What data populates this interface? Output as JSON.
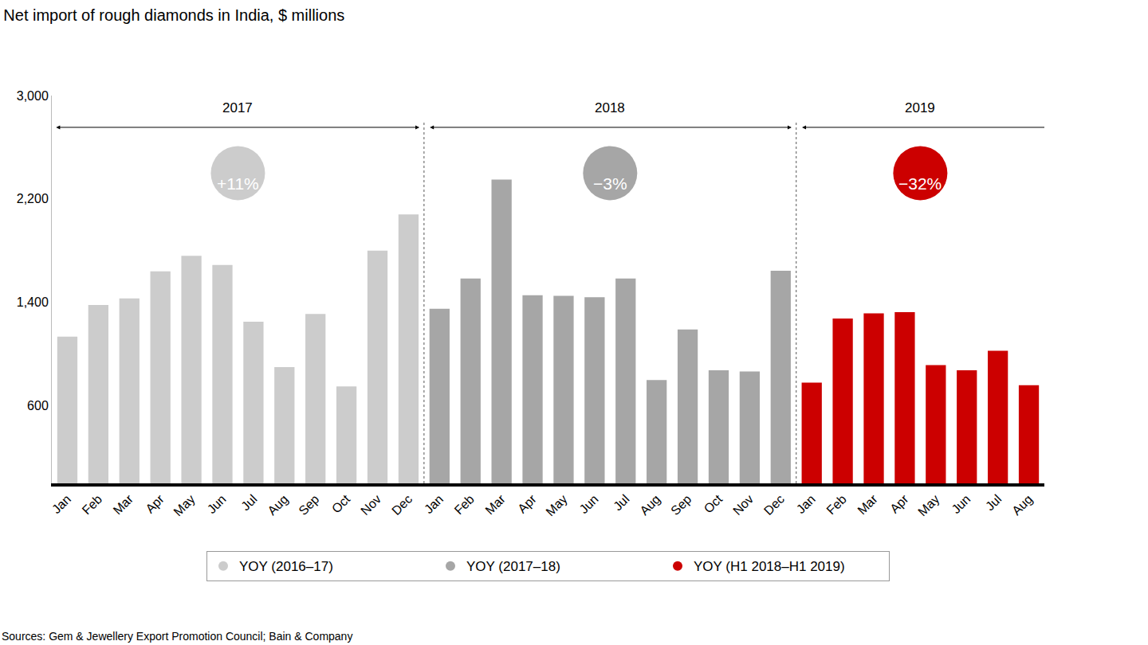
{
  "chart_data": {
    "type": "bar",
    "title": "Net import of rough diamonds in India, $ millions",
    "source": "Sources: Gem & Jewellery Export Promotion Council; Bain & Company",
    "categories": [
      "Jan",
      "Feb",
      "Mar",
      "Apr",
      "May",
      "Jun",
      "Jul",
      "Aug",
      "Sep",
      "Oct",
      "Nov",
      "Dec",
      "Jan",
      "Feb",
      "Mar",
      "Apr",
      "May",
      "Jun",
      "Jul",
      "Aug",
      "Sep",
      "Oct",
      "Nov",
      "Dec",
      "Jan",
      "Feb",
      "Mar",
      "Apr",
      "May",
      "Jun",
      "Jul",
      "Aug"
    ],
    "series": [
      {
        "name": "YOY (2016–17)",
        "color": "#cccccc",
        "marker": "circle",
        "values": [
          1135,
          1380,
          1430,
          1640,
          1760,
          1690,
          1250,
          900,
          1310,
          750,
          1800,
          2080,
          null,
          null,
          null,
          null,
          null,
          null,
          null,
          null,
          null,
          null,
          null,
          null,
          null,
          null,
          null,
          null,
          null,
          null,
          null,
          null
        ]
      },
      {
        "name": "YOY (2017–18)",
        "color": "#a6a6a6",
        "marker": "circle",
        "values": [
          null,
          null,
          null,
          null,
          null,
          null,
          null,
          null,
          null,
          null,
          null,
          null,
          1350,
          1585,
          2350,
          1455,
          1450,
          1440,
          1585,
          800,
          1190,
          875,
          865,
          1645,
          null,
          null,
          null,
          null,
          null,
          null,
          null,
          null
        ]
      },
      {
        "name": "YOY (H1 2018–H1 2019)",
        "color": "#cc0000",
        "marker": "circle",
        "values": [
          null,
          null,
          null,
          null,
          null,
          null,
          null,
          null,
          null,
          null,
          null,
          null,
          null,
          null,
          null,
          null,
          null,
          null,
          null,
          null,
          null,
          null,
          null,
          null,
          780,
          1275,
          1315,
          1325,
          915,
          875,
          1025,
          760
        ]
      }
    ],
    "periods": [
      {
        "label": "2017",
        "change": "+11%"
      },
      {
        "label": "2018",
        "change": "−3%"
      },
      {
        "label": "2019",
        "change": "−32%"
      }
    ],
    "ylim": [
      0,
      3000
    ],
    "yticks": [
      600,
      {
        "value": 1400,
        "label": "1,400"
      },
      {
        "value": 2200,
        "label": "2,200"
      },
      {
        "value": 3000,
        "label": "3,000"
      }
    ],
    "grid": false,
    "legend": "bottom"
  }
}
